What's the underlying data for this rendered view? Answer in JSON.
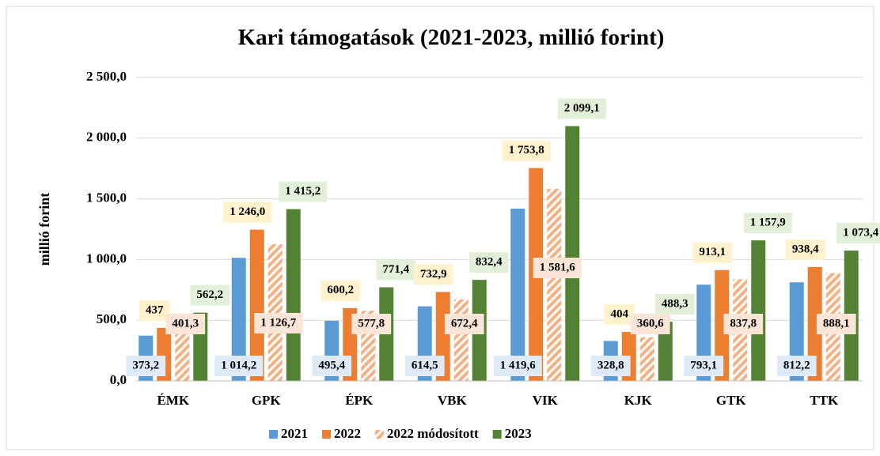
{
  "chart_data": {
    "type": "bar",
    "title": "Kari támogatások (2021-2023, millió forint)",
    "y_label": "millió forint",
    "categories": [
      "ÉMK",
      "GPK",
      "ÉPK",
      "VBK",
      "VIK",
      "KJK",
      "GTK",
      "TTK"
    ],
    "series": [
      {
        "name": "2021",
        "color": "#5b9bd5",
        "values": [
          373.2,
          1014.2,
          495.4,
          614.5,
          1419.6,
          328.8,
          793.1,
          812.2
        ],
        "value_labels": [
          "373,2",
          "1 014,2",
          "495,4",
          "614,5",
          "1 419,6",
          "328,8",
          "793,1",
          "812,2"
        ]
      },
      {
        "name": "2022",
        "color": "#ed7d31",
        "values": [
          437,
          1246.0,
          600.2,
          732.9,
          1753.8,
          404,
          913.1,
          938.4
        ],
        "value_labels": [
          "437",
          "1 246,0",
          "600,2",
          "732,9",
          "1 753,8",
          "404",
          "913,1",
          "938,4"
        ]
      },
      {
        "name": "2022 módosított",
        "color": "#f4b183",
        "hatched": true,
        "values": [
          401.3,
          1126.7,
          577.8,
          672.4,
          1581.6,
          360.6,
          837.8,
          888.1
        ],
        "value_labels": [
          "401,3",
          "1 126,7",
          "577,8",
          "672,4",
          "1 581,6",
          "360,6",
          "837,8",
          "888,1"
        ]
      },
      {
        "name": "2023",
        "color": "#548235",
        "values": [
          562.2,
          1415.2,
          771.4,
          832.4,
          2099.1,
          488.3,
          1157.9,
          1073.4
        ],
        "value_labels": [
          "562,2",
          "1 415,2",
          "771,4",
          "832,4",
          "2 099,1",
          "488,3",
          "1 157,9",
          "1 073,4"
        ]
      }
    ],
    "ylim": [
      0,
      2500
    ],
    "yticks": [
      {
        "value": 0,
        "label": "0,0"
      },
      {
        "value": 500,
        "label": "500,0"
      },
      {
        "value": 1000,
        "label": "1 000,0"
      },
      {
        "value": 1500,
        "label": "1 500,0"
      },
      {
        "value": 2000,
        "label": "2 000,0"
      },
      {
        "value": 2500,
        "label": "2 500,0"
      }
    ],
    "grid": true,
    "legend": "bottom"
  }
}
